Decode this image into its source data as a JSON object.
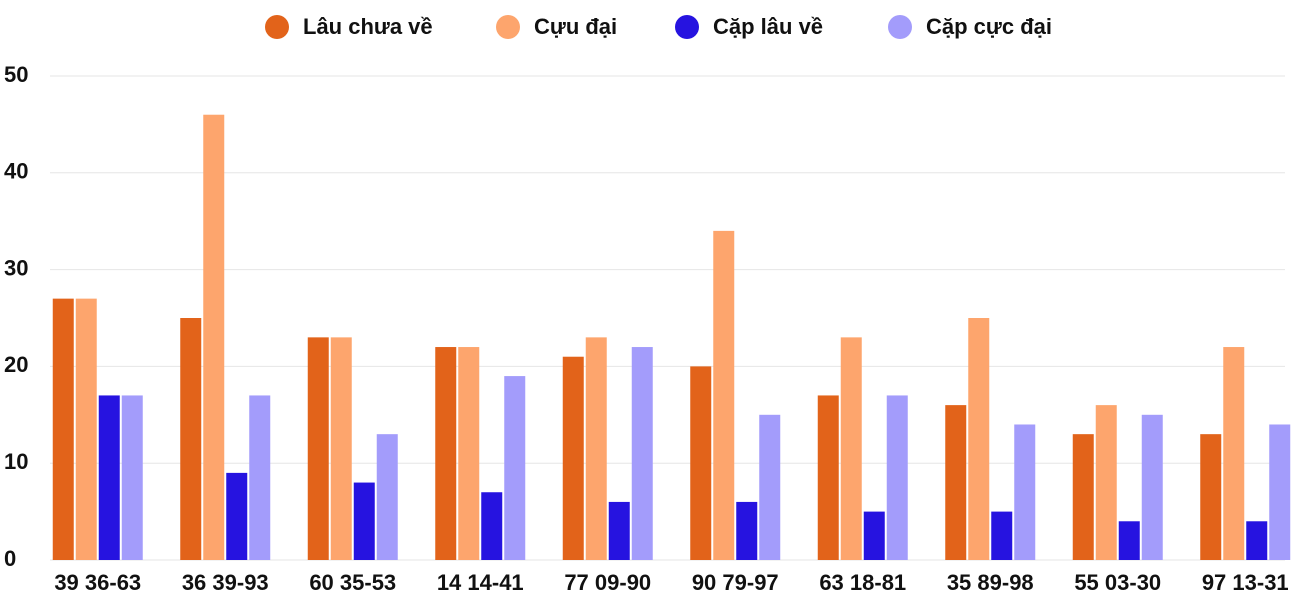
{
  "chart_data": {
    "type": "bar",
    "categories": [
      "39 36-63",
      "36 39-93",
      "60 35-53",
      "14 14-41",
      "77 09-90",
      "90 79-97",
      "63 18-81",
      "35 89-98",
      "55 03-30",
      "97 13-31"
    ],
    "series": [
      {
        "name": "Lâu chưa về",
        "color": "#e2631a",
        "values": [
          27,
          25,
          23,
          22,
          21,
          20,
          17,
          16,
          13,
          13
        ]
      },
      {
        "name": "Cựu đại",
        "color": "#fda56d",
        "values": [
          27,
          46,
          23,
          22,
          23,
          34,
          23,
          25,
          16,
          22
        ]
      },
      {
        "name": "Cặp lâu về",
        "color": "#2613e0",
        "values": [
          17,
          9,
          8,
          7,
          6,
          6,
          5,
          5,
          4,
          4
        ]
      },
      {
        "name": "Cặp cực đại",
        "color": "#a39cfb",
        "values": [
          17,
          17,
          13,
          19,
          22,
          15,
          17,
          14,
          15,
          14
        ]
      }
    ],
    "ylim": [
      0,
      50
    ],
    "yticks": [
      0,
      10,
      20,
      30,
      40,
      50
    ],
    "grid": true,
    "legend": "top"
  }
}
